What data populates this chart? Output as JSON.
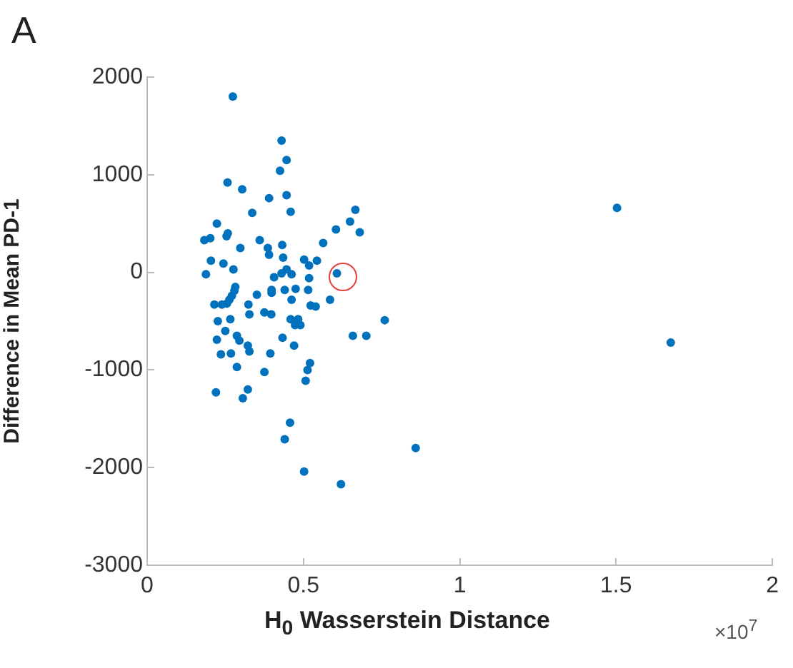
{
  "chart_data": {
    "type": "scatter",
    "xlabel": "H$_{0}$ Wasserstein Distance",
    "ylabel": "Difference in Mean PD-1",
    "annotations": [
      "A",
      "×10$^{7}$"
    ],
    "xlim": [
      0,
      2
    ],
    "xticks": [
      0,
      0.5,
      1,
      1.5,
      2
    ],
    "ylim": [
      -3000,
      2000
    ],
    "yticks": [
      -3000,
      -2000,
      -1000,
      0,
      1000,
      2000
    ],
    "grid": false,
    "legend": false,
    "marker": "circle",
    "series": [
      {
        "color": "#0072bd",
        "x": [
          0.274,
          0.43,
          0.446,
          0.425,
          0.257,
          0.304,
          0.39,
          0.446,
          0.666,
          1.503,
          0.336,
          0.459,
          0.649,
          0.223,
          0.68,
          0.604,
          0.258,
          0.254,
          0.183,
          0.202,
          0.36,
          0.563,
          0.432,
          0.298,
          0.386,
          0.39,
          0.435,
          0.502,
          0.204,
          0.244,
          0.543,
          0.518,
          0.446,
          0.276,
          0.43,
          0.188,
          0.607,
          0.406,
          0.462,
          0.518,
          0.282,
          0.279,
          0.398,
          0.44,
          0.475,
          0.515,
          0.351,
          0.271,
          0.263,
          0.585,
          0.462,
          0.398,
          0.255,
          0.239,
          0.215,
          0.324,
          0.523,
          0.539,
          0.327,
          0.375,
          0.397,
          0.226,
          0.266,
          0.459,
          0.483,
          0.473,
          0.49,
          0.76,
          0.25,
          0.287,
          0.295,
          0.658,
          0.701,
          0.433,
          0.223,
          1.675,
          0.322,
          0.47,
          0.327,
          0.236,
          0.268,
          0.394,
          0.287,
          0.375,
          0.521,
          0.513,
          0.507,
          0.22,
          0.322,
          0.306,
          0.457,
          0.44,
          0.859,
          0.502,
          0.62
        ],
        "values": [
          1800,
          1350,
          1150,
          1040,
          920,
          850,
          760,
          790,
          640,
          660,
          610,
          620,
          520,
          500,
          410,
          440,
          400,
          370,
          330,
          350,
          330,
          300,
          280,
          250,
          250,
          180,
          150,
          130,
          120,
          90,
          120,
          70,
          30,
          30,
          -10,
          -20,
          -10,
          -50,
          -20,
          -60,
          -150,
          -190,
          -180,
          -180,
          -170,
          -180,
          -230,
          -240,
          -280,
          -280,
          -280,
          -210,
          -320,
          -330,
          -330,
          -330,
          -340,
          -350,
          -430,
          -410,
          -430,
          -500,
          -480,
          -480,
          -480,
          -540,
          -540,
          -490,
          -600,
          -650,
          -700,
          -650,
          -650,
          -670,
          -690,
          -720,
          -750,
          -750,
          -810,
          -840,
          -830,
          -830,
          -970,
          -1020,
          -930,
          -1000,
          -1110,
          -1230,
          -1200,
          -1290,
          -1540,
          -1710,
          -1800,
          -2040,
          -2170
        ]
      }
    ]
  }
}
